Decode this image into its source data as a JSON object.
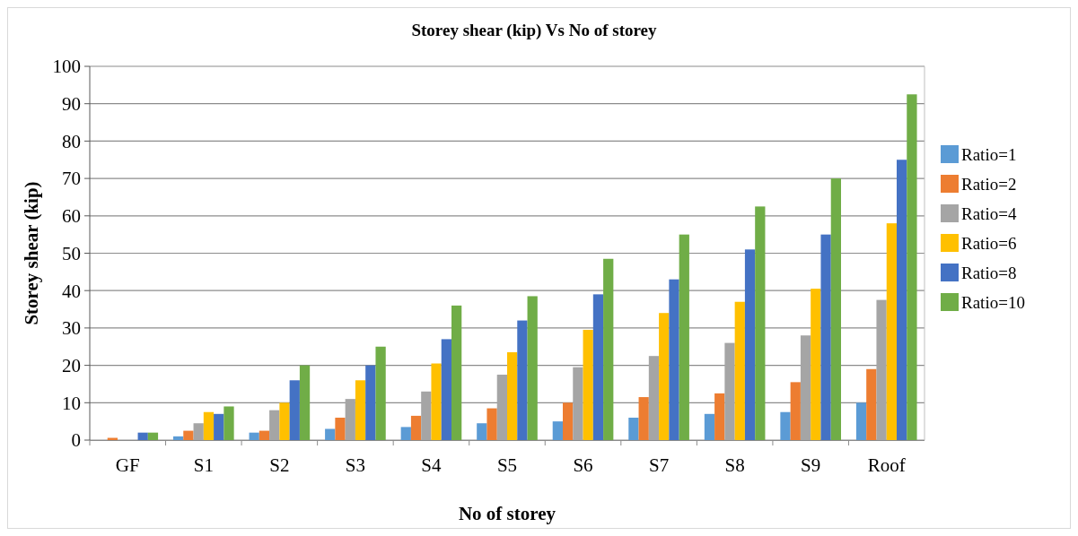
{
  "chart_data": {
    "type": "bar",
    "title": "Storey shear (kip) Vs No of storey",
    "xlabel": "No of storey",
    "ylabel": "Storey shear (kip)",
    "categories": [
      "GF",
      "S1",
      "S2",
      "S3",
      "S4",
      "S5",
      "S6",
      "S7",
      "S8",
      "S9",
      "Roof"
    ],
    "series": [
      {
        "name": "Ratio=1",
        "color": "#5b9bd5",
        "values": [
          null,
          1,
          2,
          3,
          3.5,
          4.5,
          5,
          6,
          7,
          7.5,
          10
        ]
      },
      {
        "name": "Ratio=2",
        "color": "#ed7d31",
        "values": [
          0.6,
          2.5,
          2.5,
          6,
          6.5,
          8.5,
          10,
          11.5,
          12.5,
          15.5,
          19
        ]
      },
      {
        "name": "Ratio=4",
        "color": "#a5a5a5",
        "values": [
          null,
          4.5,
          8,
          11,
          13,
          17.5,
          19.5,
          22.5,
          26,
          28,
          37.5
        ]
      },
      {
        "name": "Ratio=6",
        "color": "#ffc000",
        "values": [
          null,
          7.5,
          10,
          16,
          20.5,
          23.5,
          29.5,
          34,
          37,
          40.5,
          58
        ]
      },
      {
        "name": "Ratio=8",
        "color": "#4472c4",
        "values": [
          2,
          7,
          16,
          20,
          27,
          32,
          39,
          43,
          51,
          55,
          75
        ]
      },
      {
        "name": "Ratio=10",
        "color": "#70ad47",
        "values": [
          2,
          9,
          20,
          25,
          36,
          38.5,
          48.5,
          55,
          62.5,
          70,
          92.5
        ]
      }
    ],
    "ylim": [
      0,
      100
    ],
    "yticks": [
      0,
      10,
      20,
      30,
      40,
      50,
      60,
      70,
      80,
      90,
      100
    ],
    "grid": "y",
    "legend": "right"
  }
}
